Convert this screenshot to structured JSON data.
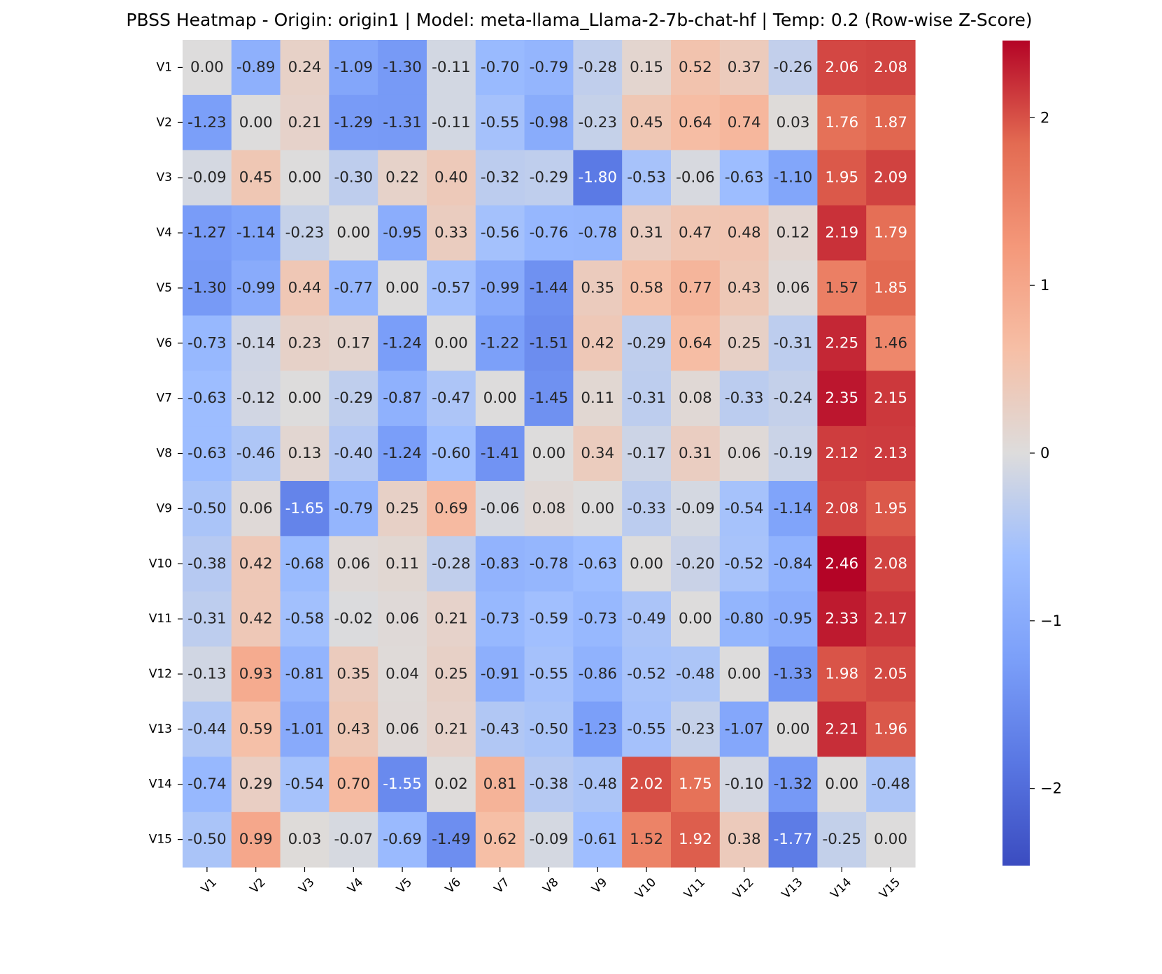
{
  "chart_data": {
    "type": "heatmap",
    "title": "PBSS Heatmap - Origin: origin1 | Model: meta-llama_Llama-2-7b-chat-hf | Temp: 0.2 (Row-wise Z-Score)",
    "rows": [
      "V1",
      "V2",
      "V3",
      "V4",
      "V5",
      "V6",
      "V7",
      "V8",
      "V9",
      "V10",
      "V11",
      "V12",
      "V13",
      "V14",
      "V15"
    ],
    "cols": [
      "V1",
      "V2",
      "V3",
      "V4",
      "V5",
      "V6",
      "V7",
      "V8",
      "V9",
      "V10",
      "V11",
      "V12",
      "V13",
      "V14",
      "V15"
    ],
    "values": [
      [
        0.0,
        -0.89,
        0.24,
        -1.09,
        -1.3,
        -0.11,
        -0.7,
        -0.79,
        -0.28,
        0.15,
        0.52,
        0.37,
        -0.26,
        2.06,
        2.08
      ],
      [
        -1.23,
        0.0,
        0.21,
        -1.29,
        -1.31,
        -0.11,
        -0.55,
        -0.98,
        -0.23,
        0.45,
        0.64,
        0.74,
        0.03,
        1.76,
        1.87
      ],
      [
        -0.09,
        0.45,
        0.0,
        -0.3,
        0.22,
        0.4,
        -0.32,
        -0.29,
        -1.8,
        -0.53,
        -0.06,
        -0.63,
        -1.1,
        1.95,
        2.09
      ],
      [
        -1.27,
        -1.14,
        -0.23,
        0.0,
        -0.95,
        0.33,
        -0.56,
        -0.76,
        -0.78,
        0.31,
        0.47,
        0.48,
        0.12,
        2.19,
        1.79
      ],
      [
        -1.3,
        -0.99,
        0.44,
        -0.77,
        0.0,
        -0.57,
        -0.99,
        -1.44,
        0.35,
        0.58,
        0.77,
        0.43,
        0.06,
        1.57,
        1.85
      ],
      [
        -0.73,
        -0.14,
        0.23,
        0.17,
        -1.24,
        0.0,
        -1.22,
        -1.51,
        0.42,
        -0.29,
        0.64,
        0.25,
        -0.31,
        2.25,
        1.46
      ],
      [
        -0.63,
        -0.12,
        0.0,
        -0.29,
        -0.87,
        -0.47,
        0.0,
        -1.45,
        0.11,
        -0.31,
        0.08,
        -0.33,
        -0.24,
        2.35,
        2.15
      ],
      [
        -0.63,
        -0.46,
        0.13,
        -0.4,
        -1.24,
        -0.6,
        -1.41,
        0.0,
        0.34,
        -0.17,
        0.31,
        0.06,
        -0.19,
        2.12,
        2.13
      ],
      [
        -0.5,
        0.06,
        -1.65,
        -0.79,
        0.25,
        0.69,
        -0.06,
        0.08,
        0.0,
        -0.33,
        -0.09,
        -0.54,
        -1.14,
        2.08,
        1.95
      ],
      [
        -0.38,
        0.42,
        -0.68,
        0.06,
        0.11,
        -0.28,
        -0.83,
        -0.78,
        -0.63,
        0.0,
        -0.2,
        -0.52,
        -0.84,
        2.46,
        2.08
      ],
      [
        -0.31,
        0.42,
        -0.58,
        -0.02,
        0.06,
        0.21,
        -0.73,
        -0.59,
        -0.73,
        -0.49,
        0.0,
        -0.8,
        -0.95,
        2.33,
        2.17
      ],
      [
        -0.13,
        0.93,
        -0.81,
        0.35,
        0.04,
        0.25,
        -0.91,
        -0.55,
        -0.86,
        -0.52,
        -0.48,
        0.0,
        -1.33,
        1.98,
        2.05
      ],
      [
        -0.44,
        0.59,
        -1.01,
        0.43,
        0.06,
        0.21,
        -0.43,
        -0.5,
        -1.23,
        -0.55,
        -0.23,
        -1.07,
        0.0,
        2.21,
        1.96
      ],
      [
        -0.74,
        0.29,
        -0.54,
        0.7,
        -1.55,
        0.02,
        0.81,
        -0.38,
        -0.48,
        2.02,
        1.75,
        -0.1,
        -1.32,
        0.0,
        -0.48
      ],
      [
        -0.5,
        0.99,
        0.03,
        -0.07,
        -0.69,
        -1.49,
        0.62,
        -0.09,
        -0.61,
        1.52,
        1.92,
        0.38,
        -1.77,
        -0.25,
        0.0
      ]
    ],
    "value_range": [
      -2.46,
      2.46
    ],
    "colormap": "coolwarm",
    "colorbar": {
      "ticks": [
        2,
        1,
        0,
        -1,
        -2
      ],
      "tick_labels": [
        "2",
        "1",
        "0",
        "−1",
        "−2"
      ]
    },
    "annotation_format": "0.00"
  }
}
